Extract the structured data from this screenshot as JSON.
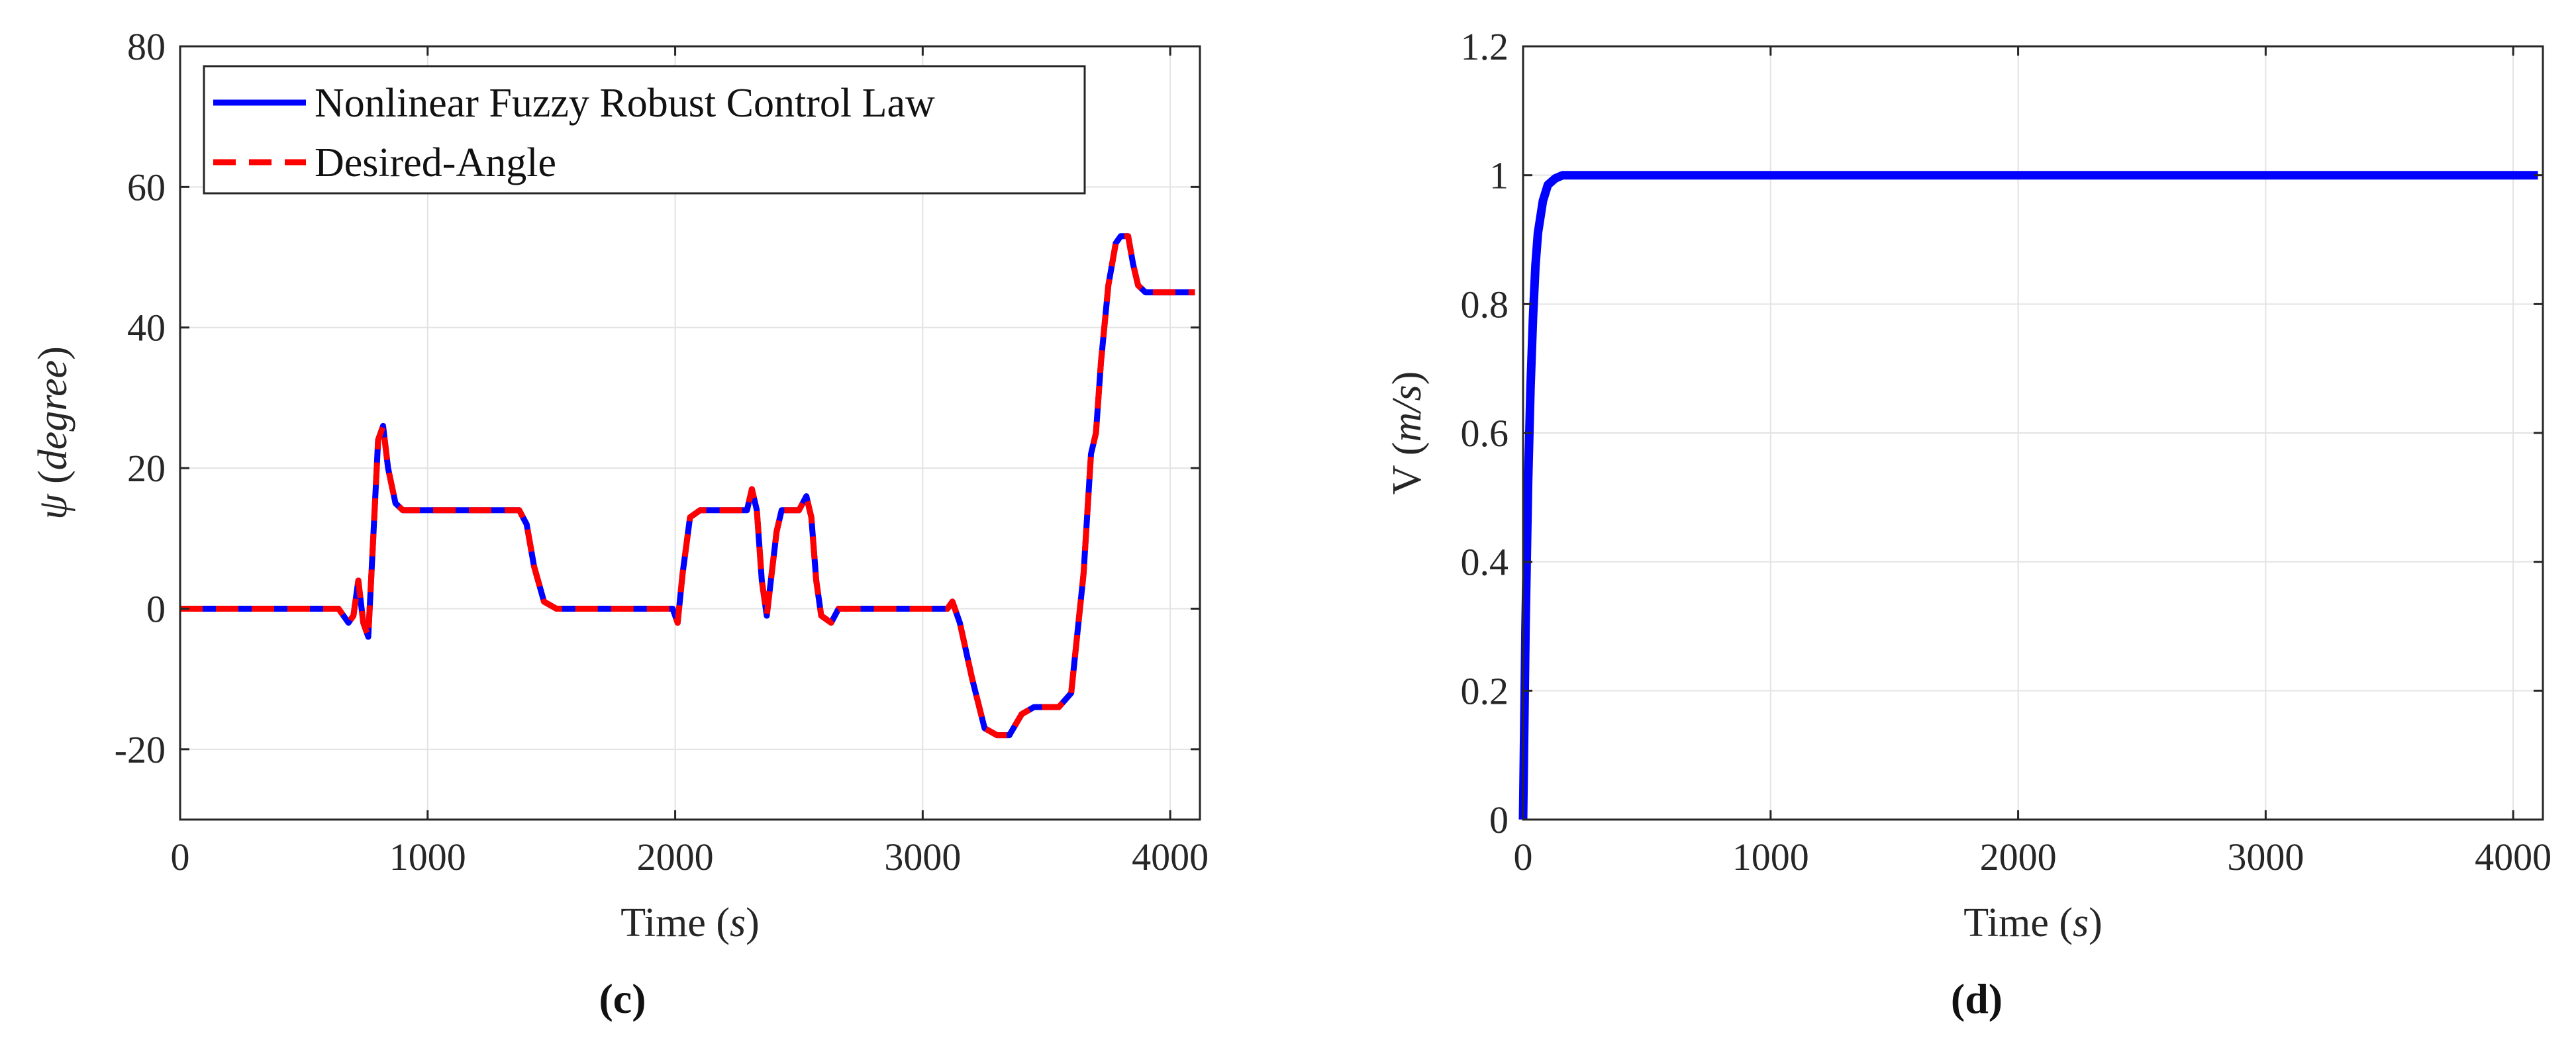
{
  "chart_data": [
    {
      "type": "line",
      "panel_label": "(c)",
      "xlabel": "Time",
      "xlabel_unit": "s",
      "ylabel": "ψ",
      "ylabel_unit": "degree",
      "xlim": [
        0,
        4120
      ],
      "ylim": [
        -30,
        80
      ],
      "xticks": [
        0,
        1000,
        2000,
        3000,
        4000
      ],
      "yticks": [
        -20,
        0,
        20,
        40,
        60,
        80
      ],
      "grid": true,
      "legend_position": "top-left",
      "series": [
        {
          "name": "Nonlinear Fuzzy Robust Control Law",
          "color": "#0000ff",
          "style": "solid",
          "x": [
            0,
            640,
            680,
            700,
            720,
            740,
            760,
            780,
            800,
            820,
            840,
            870,
            900,
            1000,
            1200,
            1370,
            1400,
            1430,
            1470,
            1520,
            1600,
            1800,
            1990,
            2010,
            2030,
            2060,
            2100,
            2200,
            2290,
            2310,
            2330,
            2350,
            2370,
            2390,
            2410,
            2430,
            2460,
            2500,
            2530,
            2550,
            2570,
            2590,
            2630,
            2660,
            2700,
            2800,
            3000,
            3100,
            3120,
            3150,
            3200,
            3250,
            3300,
            3350,
            3400,
            3450,
            3500,
            3550,
            3600,
            3650,
            3680,
            3700,
            3720,
            3750,
            3780,
            3800,
            3830,
            3850,
            3870,
            3900,
            4000,
            4100
          ],
          "y": [
            0,
            0,
            -2,
            -1,
            4,
            -2,
            -4,
            10,
            24,
            26,
            20,
            15,
            14,
            14,
            14,
            14,
            12,
            6,
            1,
            0,
            0,
            0,
            0,
            -2,
            5,
            13,
            14,
            14,
            14,
            17,
            14,
            4,
            -1,
            5,
            11,
            14,
            14,
            14,
            16,
            13,
            4,
            -1,
            -2,
            0,
            0,
            0,
            0,
            0,
            1,
            -2,
            -10,
            -17,
            -18,
            -18,
            -15,
            -14,
            -14,
            -14,
            -12,
            5,
            22,
            25,
            35,
            46,
            52,
            53,
            53,
            49,
            46,
            45,
            45,
            45
          ]
        },
        {
          "name": "Desired-Angle",
          "color": "#ff0000",
          "style": "dashed",
          "x": [
            0,
            640,
            680,
            700,
            720,
            740,
            760,
            780,
            800,
            820,
            840,
            870,
            900,
            1000,
            1200,
            1370,
            1400,
            1430,
            1470,
            1520,
            1600,
            1800,
            1990,
            2010,
            2030,
            2060,
            2100,
            2200,
            2290,
            2310,
            2330,
            2350,
            2370,
            2390,
            2410,
            2430,
            2460,
            2500,
            2530,
            2550,
            2570,
            2590,
            2630,
            2660,
            2700,
            2800,
            3000,
            3100,
            3120,
            3150,
            3200,
            3250,
            3300,
            3350,
            3400,
            3450,
            3500,
            3550,
            3600,
            3650,
            3680,
            3700,
            3720,
            3750,
            3780,
            3800,
            3830,
            3850,
            3870,
            3900,
            4000,
            4100
          ],
          "y": [
            0,
            0,
            -2,
            -1,
            4,
            -2,
            -4,
            10,
            24,
            26,
            20,
            15,
            14,
            14,
            14,
            14,
            12,
            6,
            1,
            0,
            0,
            0,
            0,
            -2,
            5,
            13,
            14,
            14,
            14,
            17,
            14,
            4,
            -1,
            5,
            11,
            14,
            14,
            14,
            16,
            13,
            4,
            -1,
            -2,
            0,
            0,
            0,
            0,
            0,
            1,
            -2,
            -10,
            -17,
            -18,
            -18,
            -15,
            -14,
            -14,
            -14,
            -12,
            5,
            22,
            25,
            35,
            46,
            52,
            53,
            53,
            49,
            46,
            45,
            45,
            45
          ]
        }
      ]
    },
    {
      "type": "line",
      "panel_label": "(d)",
      "xlabel": "Time",
      "xlabel_unit": "s",
      "ylabel": "V",
      "ylabel_unit": "m/s",
      "xlim": [
        0,
        4120
      ],
      "ylim": [
        0,
        1.2
      ],
      "xticks": [
        0,
        1000,
        2000,
        3000,
        4000
      ],
      "yticks": [
        0,
        0.2,
        0.4,
        0.6,
        0.8,
        1,
        1.2
      ],
      "grid": true,
      "series": [
        {
          "color": "#0000ff",
          "style": "solid",
          "x": [
            0,
            10,
            20,
            30,
            40,
            50,
            60,
            80,
            100,
            130,
            160,
            200,
            400,
            800,
            1500,
            2500,
            3500,
            4100
          ],
          "y": [
            0,
            0.3,
            0.52,
            0.67,
            0.78,
            0.86,
            0.91,
            0.96,
            0.985,
            0.995,
            1,
            1,
            1,
            1,
            1,
            1,
            1,
            1
          ]
        }
      ]
    }
  ]
}
